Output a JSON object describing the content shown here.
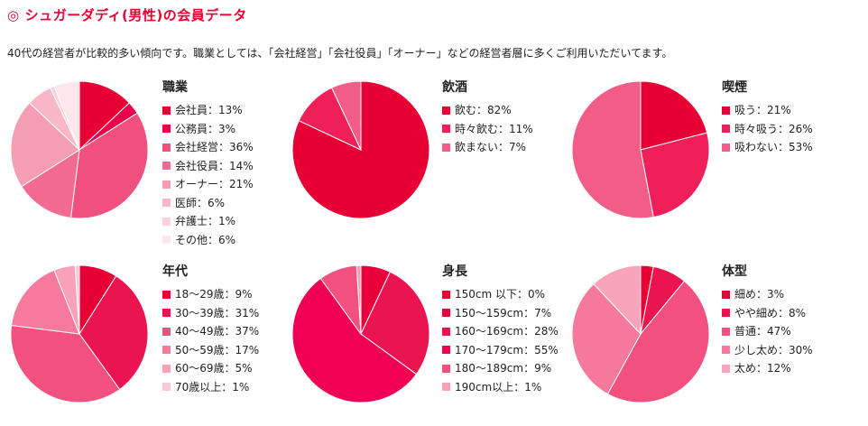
{
  "header": {
    "mark": "◎",
    "title": "シュガーダディ(男性)の会員データ",
    "intro": "40代の経営者が比較的多い傾向です。職業としては、「会社経営」「会社役員」「オーナー」などの経営者層に多くご利用いただいてます。"
  },
  "chart_data": [
    {
      "id": "occupation",
      "type": "pie",
      "title": "職業",
      "labels": [
        "会社員：13%",
        "公務員：3%",
        "会社経営：36%",
        "会社役員：14%",
        "オーナー：21%",
        "医師：6%",
        "弁護士：1%",
        "その他：6%"
      ],
      "categories": [
        "会社員",
        "公務員",
        "会社経営",
        "会社役員",
        "オーナー",
        "医師",
        "弁護士",
        "その他"
      ],
      "values": [
        13,
        3,
        36,
        14,
        21,
        6,
        1,
        6
      ],
      "colors": [
        "#e60033",
        "#e8004a",
        "#f0507e",
        "#f26b90",
        "#f59db3",
        "#f8b8c7",
        "#fbd2dc",
        "#fde6ec"
      ]
    },
    {
      "id": "drinking",
      "type": "pie",
      "title": "飲酒",
      "labels": [
        "飲む：82%",
        "時々飲む：11%",
        "飲まない：7%"
      ],
      "categories": [
        "飲む",
        "時々飲む",
        "飲まない"
      ],
      "values": [
        82,
        11,
        7
      ],
      "colors": [
        "#e60033",
        "#ef1f5a",
        "#f25d88"
      ]
    },
    {
      "id": "smoking",
      "type": "pie",
      "title": "喫煙",
      "labels": [
        "吸う：21%",
        "時々吸う：26%",
        "吸わない：53%"
      ],
      "categories": [
        "吸う",
        "時々吸う",
        "吸わない"
      ],
      "values": [
        21,
        26,
        53
      ],
      "colors": [
        "#e60033",
        "#ef1f5a",
        "#f25d88"
      ]
    },
    {
      "id": "age",
      "type": "pie",
      "title": "年代",
      "labels": [
        "18〜29歳：9%",
        "30〜39歳：31%",
        "40〜49歳：37%",
        "50〜59歳：17%",
        "60〜69歳：5%",
        "70歳以上：1%"
      ],
      "categories": [
        "18〜29歳",
        "30〜39歳",
        "40〜49歳",
        "50〜59歳",
        "60〜69歳",
        "70歳以上"
      ],
      "values": [
        9,
        31,
        37,
        17,
        5,
        1
      ],
      "colors": [
        "#e60033",
        "#ea1450",
        "#f2507e",
        "#f57a9d",
        "#f8a2b9",
        "#fbc8d5"
      ]
    },
    {
      "id": "height",
      "type": "pie",
      "title": "身長",
      "labels": [
        "150cm 以下：0%",
        "150〜159cm：7%",
        "160〜169cm：28%",
        "170〜179cm：55%",
        "180〜189cm：9%",
        "190cm以上：1%"
      ],
      "categories": [
        "150cm 以下",
        "150〜159cm",
        "160〜169cm",
        "170〜179cm",
        "180〜189cm",
        "190cm以上"
      ],
      "values": [
        0,
        7,
        28,
        55,
        9,
        1
      ],
      "colors": [
        "#e60033",
        "#e8003a",
        "#ea1450",
        "#ef0055",
        "#f2507e",
        "#f7a0b8"
      ]
    },
    {
      "id": "body",
      "type": "pie",
      "title": "体型",
      "labels": [
        "細め：3%",
        "やや細め：8%",
        "普通：47%",
        "少し太め：30%",
        "太め：12%"
      ],
      "categories": [
        "細め",
        "やや細め",
        "普通",
        "少し太め",
        "太め"
      ],
      "values": [
        3,
        8,
        47,
        30,
        12
      ],
      "colors": [
        "#e60033",
        "#ea1450",
        "#f2507e",
        "#f5799c",
        "#f8a4bb"
      ]
    }
  ]
}
